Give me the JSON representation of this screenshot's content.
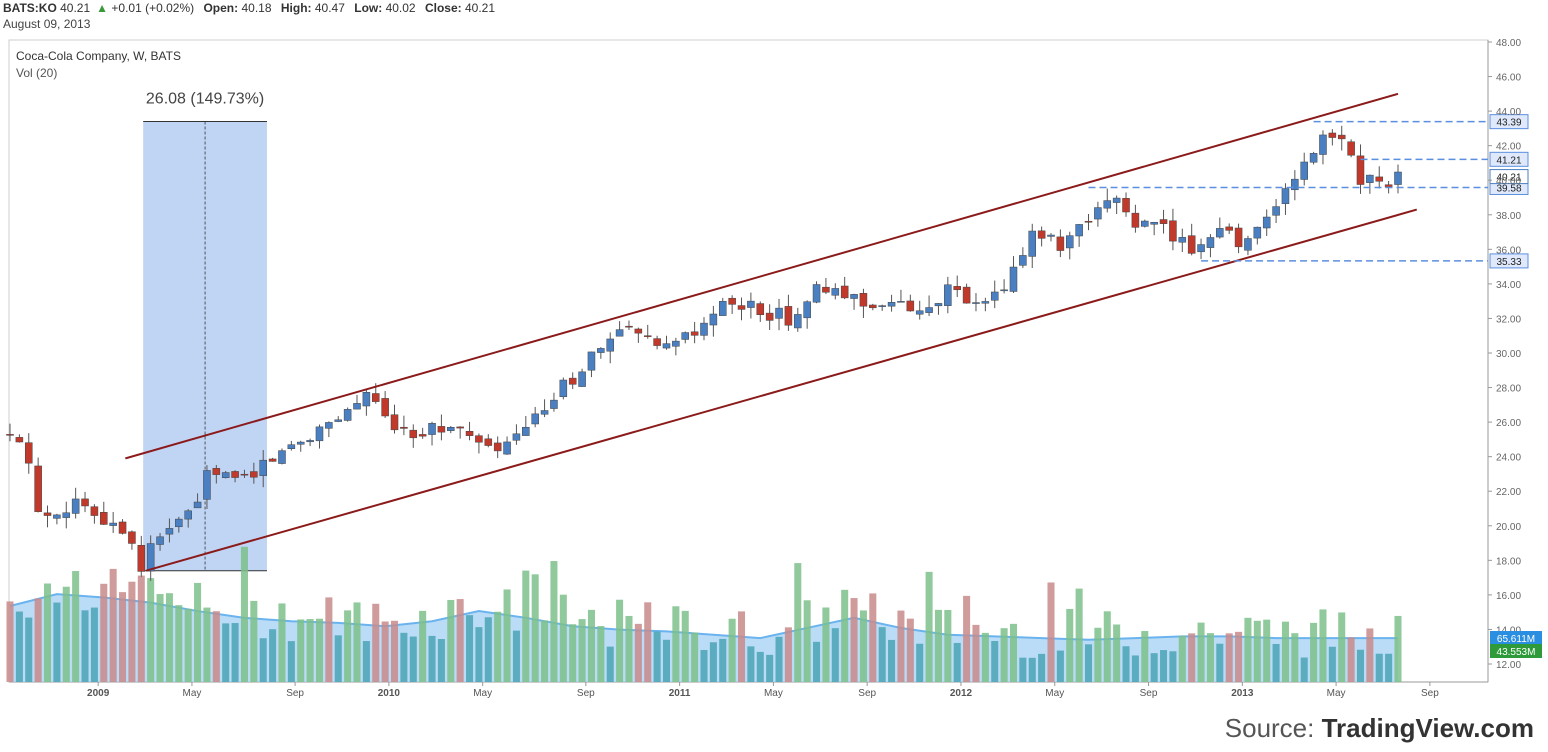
{
  "header": {
    "ticker": "BATS:KO",
    "last": "40.21",
    "change": "+0.01 (+0.02%)",
    "open_label": "Open:",
    "open": "40.18",
    "high_label": "High:",
    "high": "40.47",
    "low_label": "Low:",
    "low": "40.02",
    "close_label": "Close:",
    "close": "40.21",
    "date": "August 09, 2013"
  },
  "legend": {
    "symbol": "Coca-Cola Company, W, BATS",
    "volume": "Vol (20)"
  },
  "source": {
    "prefix": "Source: ",
    "brand": "TradingView.com"
  },
  "colors": {
    "up": "#4a7fc1",
    "down": "#c0392b",
    "channel": "#8b1a1a",
    "level": "#5b8fe0",
    "measure_fill": "#b9cff3",
    "vol_up": "#7cc08a",
    "vol_down": "#c88a8a",
    "vol_base": "#4aa3b5",
    "vol_ma_fill": "#a9d3f5",
    "vol_ma_line": "#6ab3ee"
  },
  "chart_data": {
    "type": "candlestick",
    "title": "Coca-Cola Company, W, BATS",
    "ylim": [
      11,
      48
    ],
    "y_ticks": [
      "12.00",
      "14.00",
      "16.00",
      "18.00",
      "20.00",
      "22.00",
      "24.00",
      "26.00",
      "28.00",
      "30.00",
      "32.00",
      "34.00",
      "36.00",
      "38.00",
      "40.00",
      "42.00",
      "44.00",
      "46.00",
      "48.00"
    ],
    "x_ticks": [
      "2009",
      "May",
      "Sep",
      "2010",
      "May",
      "Sep",
      "2011",
      "May",
      "Sep",
      "2012",
      "May",
      "Sep",
      "2013",
      "May",
      "Sep"
    ],
    "x_tick_bold": [
      "2009",
      "2010",
      "2011",
      "2012",
      "2013"
    ],
    "x_range_weeks": [
      0,
      150
    ],
    "x_tick_weeks": [
      9.4,
      19.4,
      30.4,
      40.4,
      50.4,
      61.4,
      71.4,
      81.4,
      91.4,
      101.4,
      111.4,
      121.4,
      131.4,
      141.4,
      151.4
    ],
    "price_points": [
      [
        0,
        25.2
      ],
      [
        2,
        23.8
      ],
      [
        3,
        20.6
      ],
      [
        7,
        21.3
      ],
      [
        12,
        20.0
      ],
      [
        14,
        17.7
      ],
      [
        16,
        19.5
      ],
      [
        19,
        20.6
      ],
      [
        21,
        22.8
      ],
      [
        25,
        22.9
      ],
      [
        27,
        23.6
      ],
      [
        31,
        25.0
      ],
      [
        34,
        26.0
      ],
      [
        38,
        27.6
      ],
      [
        40,
        26.2
      ],
      [
        43,
        25.5
      ],
      [
        47,
        25.8
      ],
      [
        51,
        24.3
      ],
      [
        54,
        25.0
      ],
      [
        57,
        26.8
      ],
      [
        62,
        29.8
      ],
      [
        66,
        31.4
      ],
      [
        69,
        30.1
      ],
      [
        73,
        31.0
      ],
      [
        76,
        32.8
      ],
      [
        80,
        32.5
      ],
      [
        83,
        32.0
      ],
      [
        86,
        33.6
      ],
      [
        90,
        33.2
      ],
      [
        93,
        32.8
      ],
      [
        97,
        32.5
      ],
      [
        100,
        33.6
      ],
      [
        103,
        32.7
      ],
      [
        106,
        33.5
      ],
      [
        109,
        37.2
      ],
      [
        112,
        36.0
      ],
      [
        115,
        37.5
      ],
      [
        118,
        39.0
      ],
      [
        120,
        37.5
      ],
      [
        123,
        37.2
      ],
      [
        126,
        36.0
      ],
      [
        129,
        37.5
      ],
      [
        131,
        36.2
      ],
      [
        134,
        38.0
      ],
      [
        137,
        40.0
      ],
      [
        140,
        42.4
      ],
      [
        142,
        42.6
      ],
      [
        144,
        40.2
      ],
      [
        146,
        39.8
      ],
      [
        148,
        40.21
      ]
    ],
    "volume_ma_points": [
      [
        0,
        15.5
      ],
      [
        5,
        16.2
      ],
      [
        10,
        16.0
      ],
      [
        15,
        15.7
      ],
      [
        20,
        15.2
      ],
      [
        25,
        14.8
      ],
      [
        30,
        14.6
      ],
      [
        35,
        14.5
      ],
      [
        40,
        14.3
      ],
      [
        45,
        14.6
      ],
      [
        50,
        15.2
      ],
      [
        55,
        14.8
      ],
      [
        60,
        14.3
      ],
      [
        65,
        14.1
      ],
      [
        70,
        14.0
      ],
      [
        75,
        13.8
      ],
      [
        80,
        13.6
      ],
      [
        85,
        14.2
      ],
      [
        90,
        14.8
      ],
      [
        95,
        14.2
      ],
      [
        100,
        13.8
      ],
      [
        105,
        13.7
      ],
      [
        110,
        13.6
      ],
      [
        115,
        13.5
      ],
      [
        120,
        13.6
      ],
      [
        125,
        13.7
      ],
      [
        130,
        13.7
      ],
      [
        135,
        13.6
      ],
      [
        140,
        13.6
      ],
      [
        145,
        13.6
      ],
      [
        148,
        13.6
      ]
    ],
    "channel_upper": [
      [
        12.3,
        23.9
      ],
      [
        148,
        45.0
      ]
    ],
    "channel_lower": [
      [
        14.5,
        17.4
      ],
      [
        150,
        38.3
      ]
    ],
    "levels": [
      {
        "value": 43.39,
        "label": "43.39",
        "from_week": 139
      },
      {
        "value": 41.21,
        "label": "41.21",
        "from_week": 144
      },
      {
        "value": 39.58,
        "label": "39.58",
        "from_week": 115
      },
      {
        "value": 35.33,
        "label": "35.33",
        "from_week": 127
      }
    ],
    "last_price_label": "40.21",
    "volume_labels": [
      "65.611M",
      "43.553M"
    ],
    "measure": {
      "label": "26.08 (149.73%)",
      "from_week": 14.2,
      "to_week": 27.4,
      "low": 17.4,
      "high": 43.4
    },
    "volume_axis": {
      "ylim": [
        11,
        20
      ]
    }
  }
}
